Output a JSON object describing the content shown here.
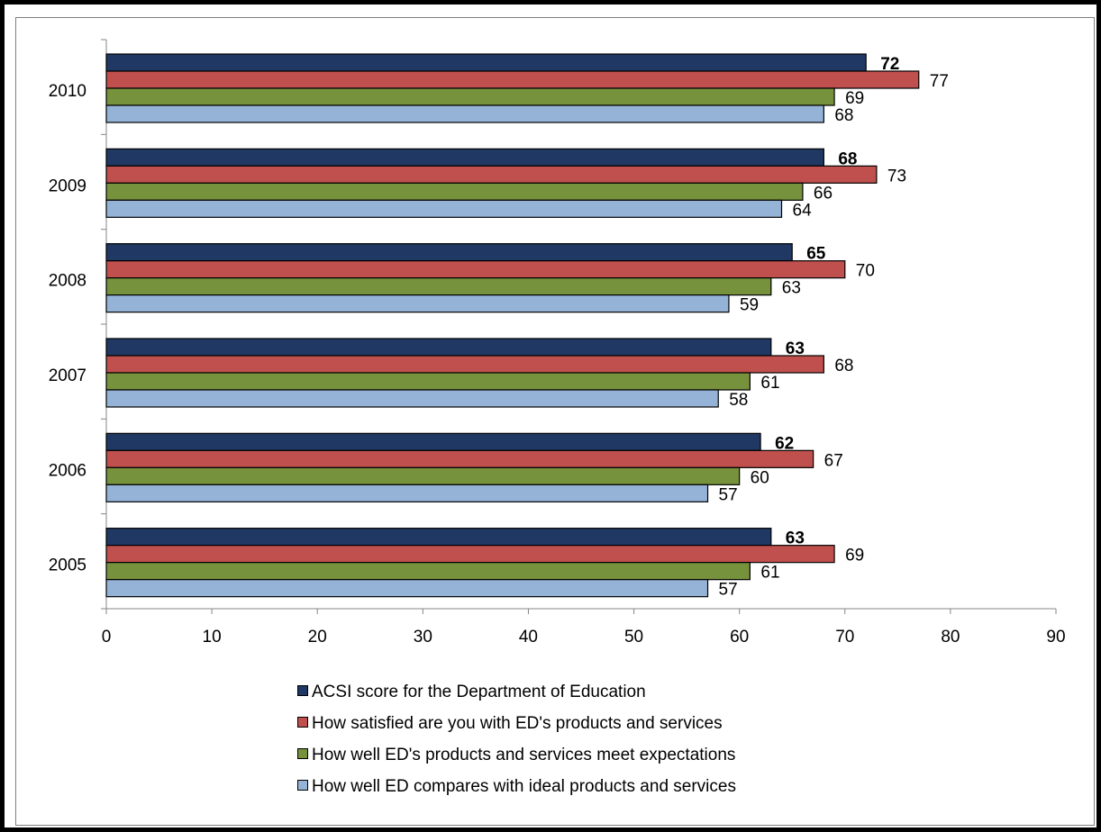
{
  "chart_data": {
    "type": "bar",
    "orientation": "horizontal",
    "categories": [
      "2010",
      "2009",
      "2008",
      "2007",
      "2006",
      "2005"
    ],
    "series": [
      {
        "name": "ACSI score for the Department of Education",
        "color": "#1f3864",
        "label_bold": true,
        "values": [
          72,
          68,
          65,
          63,
          62,
          63
        ]
      },
      {
        "name": "How satisfied are you with ED's products and services",
        "color": "#c0504d",
        "label_bold": false,
        "values": [
          77,
          73,
          70,
          68,
          67,
          69
        ]
      },
      {
        "name": "How well ED's products and services meet expectations",
        "color": "#76923c",
        "label_bold": false,
        "values": [
          69,
          66,
          63,
          61,
          60,
          61
        ]
      },
      {
        "name": "How well ED compares with ideal products and services",
        "color": "#95b3d7",
        "label_bold": false,
        "values": [
          68,
          64,
          59,
          58,
          57,
          57
        ]
      }
    ],
    "x_ticks": [
      "0",
      "10",
      "20",
      "30",
      "40",
      "50",
      "60",
      "70",
      "80",
      "90"
    ],
    "xlim": [
      0,
      90
    ],
    "grid": false,
    "legend_position": "bottom"
  }
}
